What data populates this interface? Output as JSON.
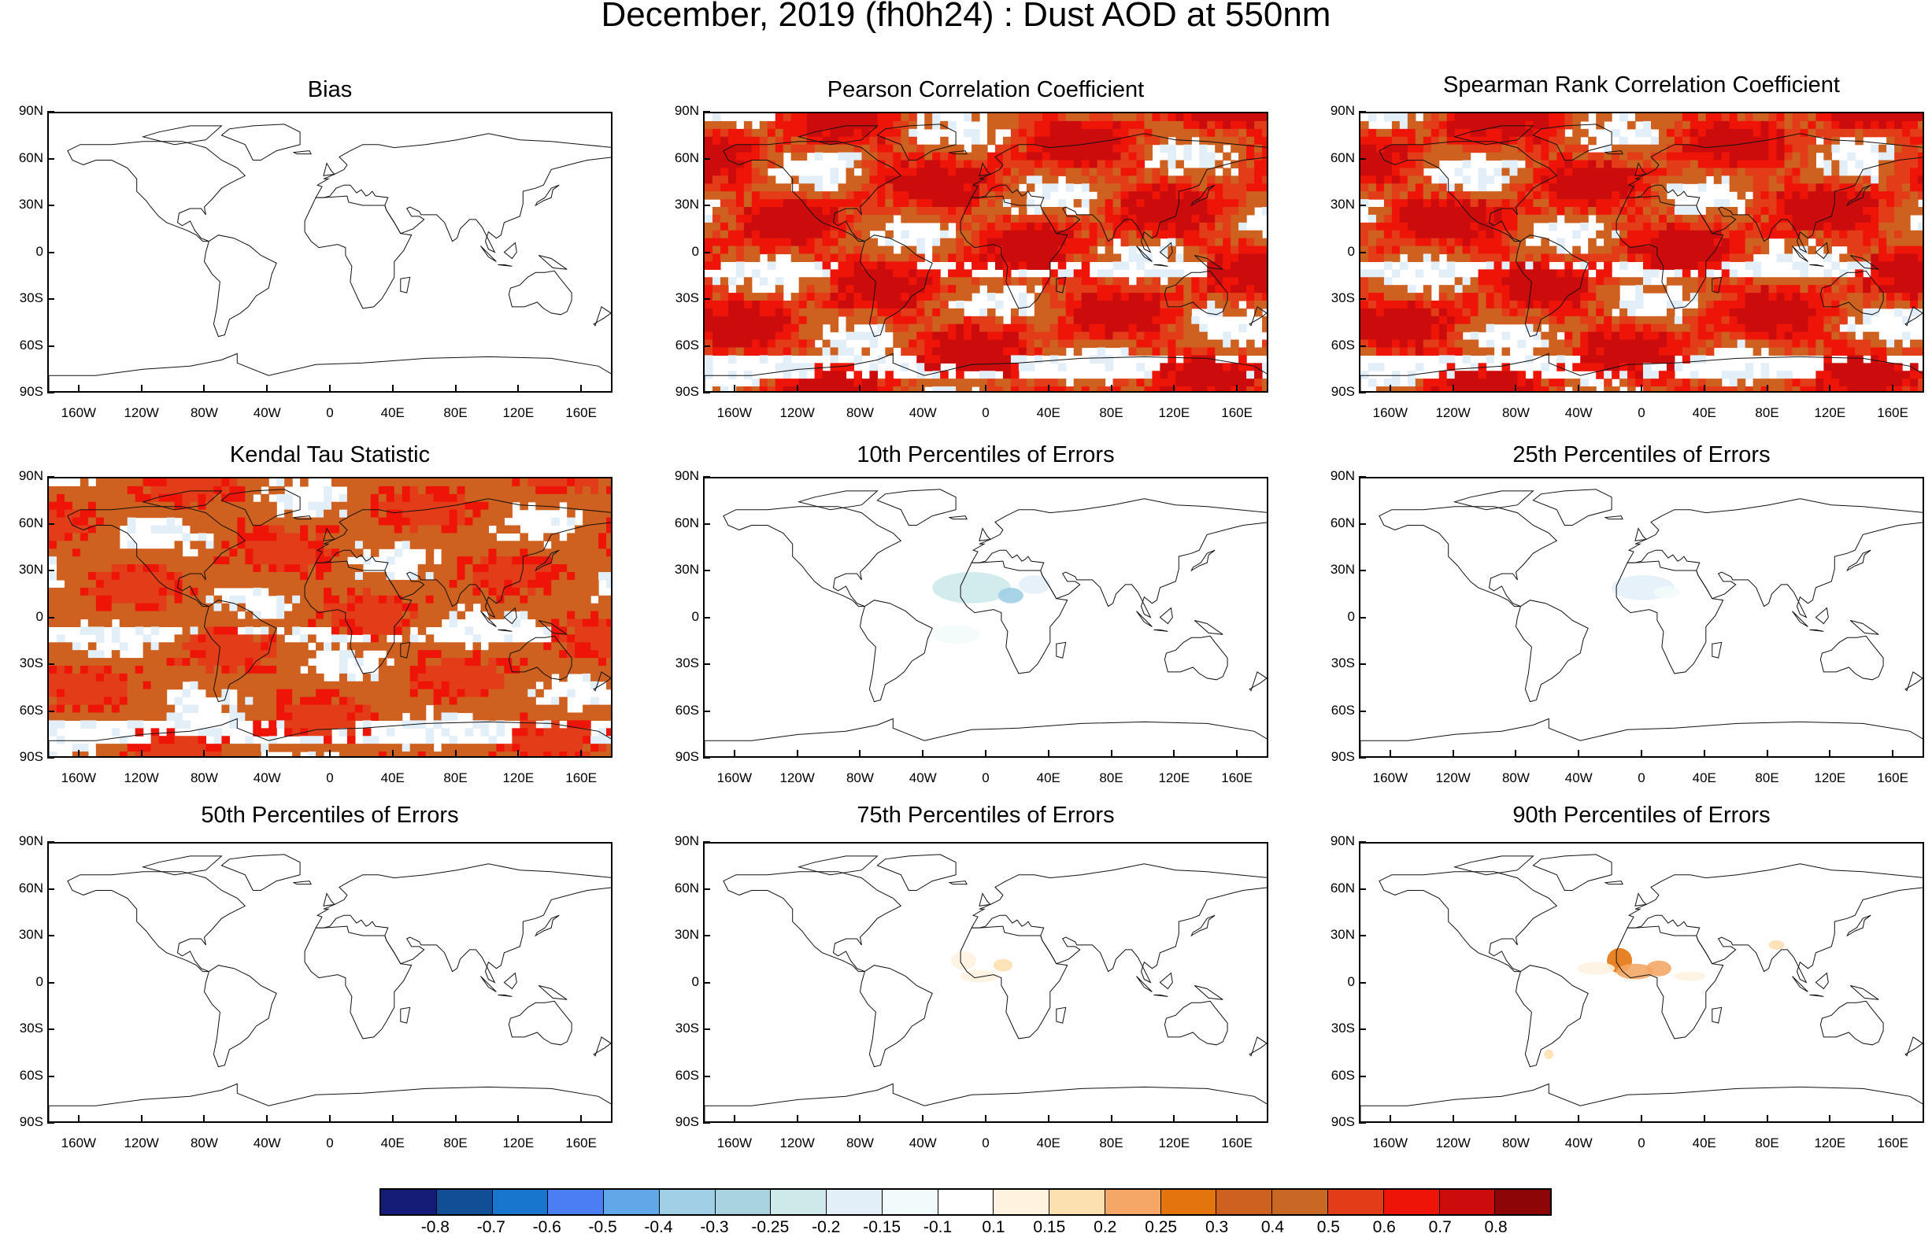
{
  "title": "December, 2019 (fh0h24) : Dust AOD at 550nm",
  "lat_labels": [
    "90N",
    "60N",
    "30N",
    "0",
    "30S",
    "60S",
    "90S"
  ],
  "lon_labels": [
    "160W",
    "120W",
    "80W",
    "40W",
    "0",
    "40E",
    "80E",
    "120E",
    "160E"
  ],
  "panels": [
    {
      "title": "Bias",
      "pattern": "empty"
    },
    {
      "title": "Pearson Correlation Coefficient",
      "pattern": "high"
    },
    {
      "title": "Spearman Rank Correlation Coefficient",
      "pattern": "high"
    },
    {
      "title": "Kendal Tau Statistic",
      "pattern": "medium"
    },
    {
      "title": "10th Percentiles of Errors",
      "pattern": "neg-sahara"
    },
    {
      "title": "25th Percentiles of Errors",
      "pattern": "neg-sahara-light"
    },
    {
      "title": "50th Percentiles of Errors",
      "pattern": "empty"
    },
    {
      "title": "75th Percentiles of Errors",
      "pattern": "pos-westafrica-light"
    },
    {
      "title": "90th Percentiles of Errors",
      "pattern": "pos-westafrica"
    }
  ],
  "colorbar": {
    "labels": [
      "-0.8",
      "-0.7",
      "-0.6",
      "-0.5",
      "-0.4",
      "-0.3",
      "-0.25",
      "-0.2",
      "-0.15",
      "-0.1",
      "0.1",
      "0.15",
      "0.2",
      "0.25",
      "0.3",
      "0.4",
      "0.5",
      "0.6",
      "0.7",
      "0.8"
    ],
    "colors": [
      "#141c78",
      "#124e95",
      "#1976cf",
      "#4a7ef2",
      "#60a8e8",
      "#a0cfe6",
      "#a9d3e0",
      "#cde9ea",
      "#e3eff8",
      "#f2fbfb",
      "#ffffff",
      "#fff3e0",
      "#fde0b0",
      "#f4a766",
      "#e4740e",
      "#ce6020",
      "#c96824",
      "#e23c18",
      "#ee1508",
      "#cc0c0c",
      "#8e0508"
    ]
  }
}
